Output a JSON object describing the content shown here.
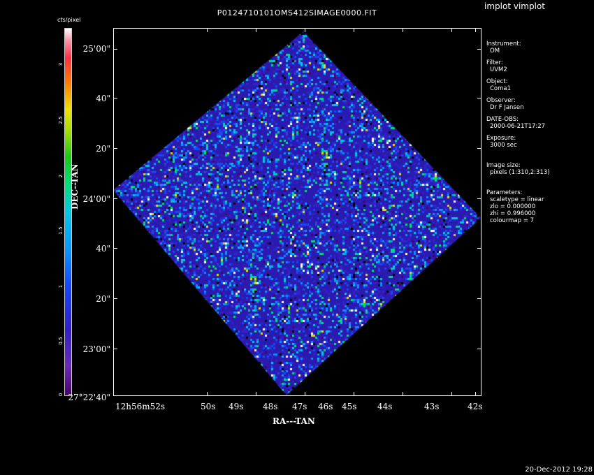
{
  "app_title": "implot vimplot",
  "image_title": "P0124710101OMS412SIMAGE0000.FIT",
  "footer_timestamp": "20-Dec-2012 19:28",
  "colorbar": {
    "unit": "cts/pixel",
    "ticks": [
      "0",
      "0.5",
      "1",
      "1.5",
      "2",
      "2.5",
      "3"
    ]
  },
  "axes": {
    "ylabel": "DEC--TAN",
    "xlabel": "RA---TAN",
    "y_ticks": [
      "25'00\"",
      "40\"",
      "20\"",
      "24'00\"",
      "40\"",
      "20\"",
      "23'00\"",
      "27°22'40\""
    ],
    "x_ticks": [
      "12h56m52s",
      "50s",
      "49s",
      "48s",
      "47s",
      "46s",
      "45s",
      "44s",
      "43s",
      "42s"
    ]
  },
  "info_panel": {
    "instrument_label": "Instrument:",
    "instrument_value": "OM",
    "filter_label": "Filter:",
    "filter_value": "UVM2",
    "object_label": "Object:",
    "object_value": "Coma1",
    "observer_label": "Observer:",
    "observer_value": "Dr F Jansen",
    "date_label": "DATE-OBS:",
    "date_value": "2000-06-21T17:27",
    "exposure_label": "Exposure:",
    "exposure_value": "3000 sec",
    "imagesize_label": "Image size:",
    "imagesize_value": "pixels (1:310,2:313)",
    "params_label": "Parameters:",
    "param_scaletype": "scaletype = linear",
    "param_zlo": "zlo = 0.000000",
    "param_zhi": "zhi = 0.996000",
    "param_colourmap": "colourmap = 7"
  },
  "colors": {
    "background": "#000000",
    "foreground": "#ffffff",
    "image_base": "#2a1ab0"
  }
}
